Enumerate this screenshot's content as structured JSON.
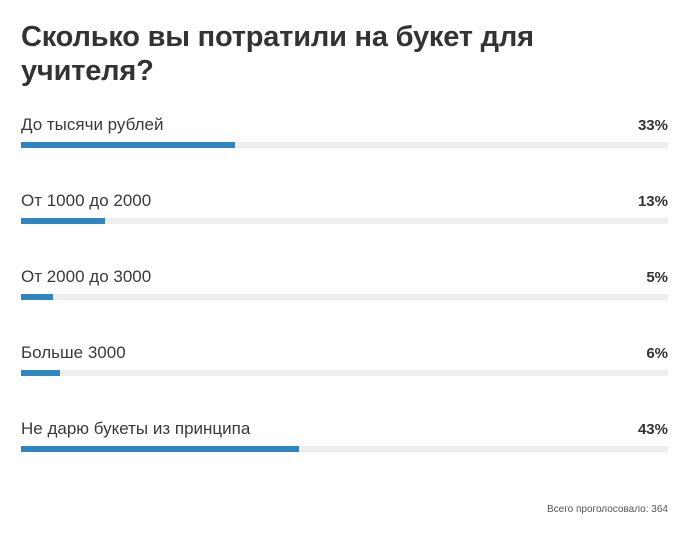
{
  "poll": {
    "title": "Сколько вы потратили на букет для учителя?",
    "accent_color": "#2e86c1",
    "track_color": "#eeeeee",
    "options": [
      {
        "label": "До тысячи рублей",
        "percent_text": "33%",
        "percent": 33
      },
      {
        "label": "От 1000 до 2000",
        "percent_text": "13%",
        "percent": 13
      },
      {
        "label": "От 2000 до 3000",
        "percent_text": "5%",
        "percent": 5
      },
      {
        "label": "Больше 3000",
        "percent_text": "6%",
        "percent": 6
      },
      {
        "label": "Не дарю букеты из принципа",
        "percent_text": "43%",
        "percent": 43
      }
    ],
    "total_votes_text": "Всего проголосовало: 364"
  }
}
